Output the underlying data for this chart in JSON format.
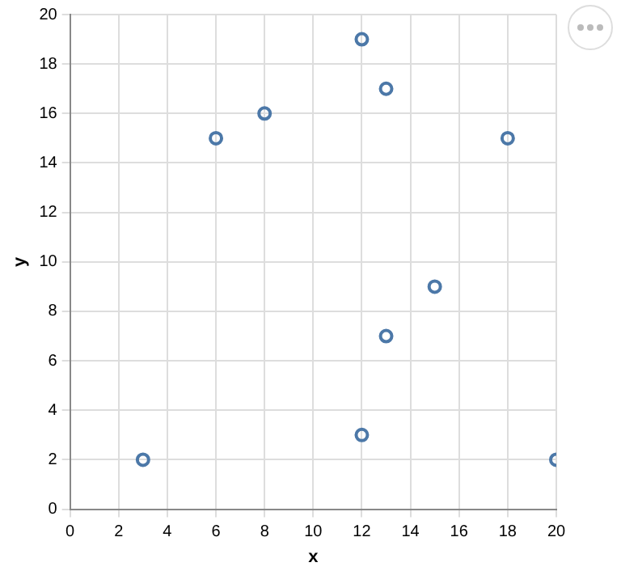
{
  "chart_data": {
    "type": "scatter",
    "xlabel": "x",
    "ylabel": "y",
    "x": [
      3,
      6,
      8,
      12,
      13,
      18,
      15,
      13,
      12,
      20
    ],
    "series": [
      {
        "color": "#4c78a8",
        "values": [
          2,
          15,
          16,
          19,
          17,
          15,
          9,
          7,
          3,
          2
        ]
      }
    ],
    "xlim": [
      0,
      20
    ],
    "xticks": [
      0,
      2,
      4,
      6,
      8,
      10,
      12,
      14,
      16,
      18,
      20
    ],
    "ylim": [
      0,
      20
    ],
    "yticks": [
      0,
      2,
      4,
      6,
      8,
      10,
      12,
      14,
      16,
      18,
      20
    ],
    "grid": true,
    "marker": "circle",
    "legend": false
  }
}
